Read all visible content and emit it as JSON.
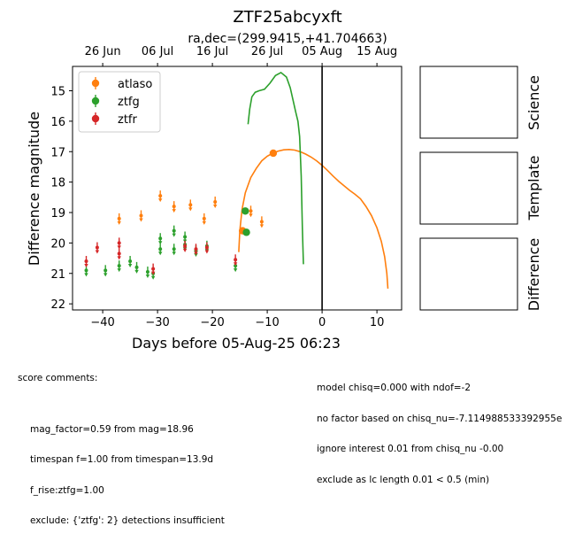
{
  "chart_data": {
    "type": "scatter",
    "title": "ZTF25abcyxft",
    "subtitle": "ra,dec=(299.9415,+41.704663)",
    "xlabel": "Days before 05-Aug-25 06:23",
    "ylabel": "Difference magnitude",
    "xlim": [
      -45.5,
      14.5
    ],
    "ylim": [
      22.2,
      14.2
    ],
    "y_inverted": true,
    "grid": false,
    "legend_placement": "top-left",
    "x_ticks": [
      -40,
      -30,
      -20,
      -10,
      0,
      10
    ],
    "x_tick_labels": [
      "−40",
      "−30",
      "−20",
      "−10",
      "0",
      "10"
    ],
    "y_ticks": [
      15,
      16,
      17,
      18,
      19,
      20,
      21,
      22
    ],
    "y_tick_labels": [
      "15",
      "16",
      "17",
      "18",
      "19",
      "20",
      "21",
      "22"
    ],
    "top_axis": {
      "ticks": [
        -40,
        -30,
        -20,
        -10,
        0,
        10
      ],
      "tick_labels": [
        "26 Jun",
        "06 Jul",
        "16 Jul",
        "26 Jul",
        "05 Aug",
        "15 Aug"
      ]
    },
    "vline_x": 0,
    "series": [
      {
        "name": "atlaso",
        "color": "#ff7f0e",
        "detections": [
          {
            "x": -8.9,
            "y": 17.05,
            "err": 0.08
          },
          {
            "x": -14.5,
            "y": 19.6,
            "err": 0.1
          }
        ],
        "upper_limits": [
          {
            "x": -37.0,
            "y": 19.2
          },
          {
            "x": -33.0,
            "y": 19.1
          },
          {
            "x": -29.5,
            "y": 18.45
          },
          {
            "x": -27.0,
            "y": 18.8
          },
          {
            "x": -24.0,
            "y": 18.75
          },
          {
            "x": -21.5,
            "y": 19.2
          },
          {
            "x": -19.5,
            "y": 18.65
          },
          {
            "x": -13.0,
            "y": 18.95
          },
          {
            "x": -11.0,
            "y": 19.3
          }
        ],
        "model_curve": {
          "x": [
            -15.2,
            -15.0,
            -14.6,
            -14.0,
            -13.0,
            -12.0,
            -11.0,
            -10.0,
            -9.0,
            -8.0,
            -7.0,
            -6.0,
            -5.0,
            -4.0,
            -3.0,
            -2.0,
            -1.0,
            0.0,
            1.0,
            2.0,
            3.0,
            4.0,
            5.0,
            6.0,
            7.0,
            8.0,
            9.0,
            10.0,
            10.8,
            11.4,
            11.8,
            12.0
          ],
          "y": [
            20.3,
            19.6,
            18.9,
            18.35,
            17.85,
            17.55,
            17.3,
            17.15,
            17.05,
            16.98,
            16.94,
            16.93,
            16.95,
            17.0,
            17.08,
            17.18,
            17.3,
            17.45,
            17.62,
            17.8,
            17.97,
            18.12,
            18.27,
            18.4,
            18.55,
            18.8,
            19.1,
            19.5,
            19.95,
            20.45,
            21.0,
            21.5
          ]
        }
      },
      {
        "name": "ztfg",
        "color": "#2ca02c",
        "detections": [
          {
            "x": -14.0,
            "y": 18.95,
            "err": 0.08
          },
          {
            "x": -13.8,
            "y": 19.65,
            "err": 0.08
          }
        ],
        "upper_limits": [
          {
            "x": -43.0,
            "y": 20.9
          },
          {
            "x": -39.5,
            "y": 20.9
          },
          {
            "x": -37.0,
            "y": 20.75
          },
          {
            "x": -35.0,
            "y": 20.6
          },
          {
            "x": -33.8,
            "y": 20.8
          },
          {
            "x": -31.8,
            "y": 20.95
          },
          {
            "x": -30.8,
            "y": 21.0
          },
          {
            "x": -29.5,
            "y": 19.85
          },
          {
            "x": -29.5,
            "y": 20.2
          },
          {
            "x": -27.0,
            "y": 19.6
          },
          {
            "x": -27.0,
            "y": 20.2
          },
          {
            "x": -25.0,
            "y": 19.8
          },
          {
            "x": -25.0,
            "y": 20.05
          },
          {
            "x": -23.0,
            "y": 20.25
          },
          {
            "x": -21.0,
            "y": 20.1
          },
          {
            "x": -15.8,
            "y": 20.75
          }
        ],
        "model_curve": {
          "x": [
            -13.5,
            -13.2,
            -12.8,
            -12.2,
            -11.5,
            -10.5,
            -9.5,
            -8.5,
            -7.5,
            -6.5,
            -5.8,
            -5.3,
            -4.8,
            -4.4,
            -4.1,
            -3.8,
            -3.6,
            -3.4
          ],
          "y": [
            16.1,
            15.6,
            15.2,
            15.05,
            15.0,
            14.95,
            14.75,
            14.5,
            14.4,
            14.55,
            14.9,
            15.3,
            15.7,
            16.0,
            16.5,
            17.8,
            19.5,
            20.7
          ]
        }
      },
      {
        "name": "ztfr",
        "color": "#d62728",
        "detections": [],
        "upper_limits": [
          {
            "x": -43.0,
            "y": 20.6
          },
          {
            "x": -41.0,
            "y": 20.15
          },
          {
            "x": -37.0,
            "y": 20.0
          },
          {
            "x": -37.0,
            "y": 20.35
          },
          {
            "x": -30.8,
            "y": 20.85
          },
          {
            "x": -25.0,
            "y": 20.1
          },
          {
            "x": -23.0,
            "y": 20.2
          },
          {
            "x": -21.0,
            "y": 20.15
          },
          {
            "x": -15.8,
            "y": 20.55
          }
        ]
      }
    ]
  },
  "side_panels": [
    "Science",
    "Template",
    "Difference"
  ],
  "score_comments": {
    "heading": "score comments:",
    "left": [
      "mag_factor=0.59 from mag=18.96",
      "timespan f=1.00 from timespan=13.9d",
      "f_rise:ztfg=1.00",
      "exclude: {'ztfg': 2} detections insufficient"
    ],
    "right": [
      "model chisq=0.000 with ndof=-2",
      "no factor based on chisq_nu=-7.114988533392955e",
      "ignore interest 0.01 from chisq_nu -0.00",
      "exclude as lc length 0.01 < 0.5 (min)"
    ]
  }
}
